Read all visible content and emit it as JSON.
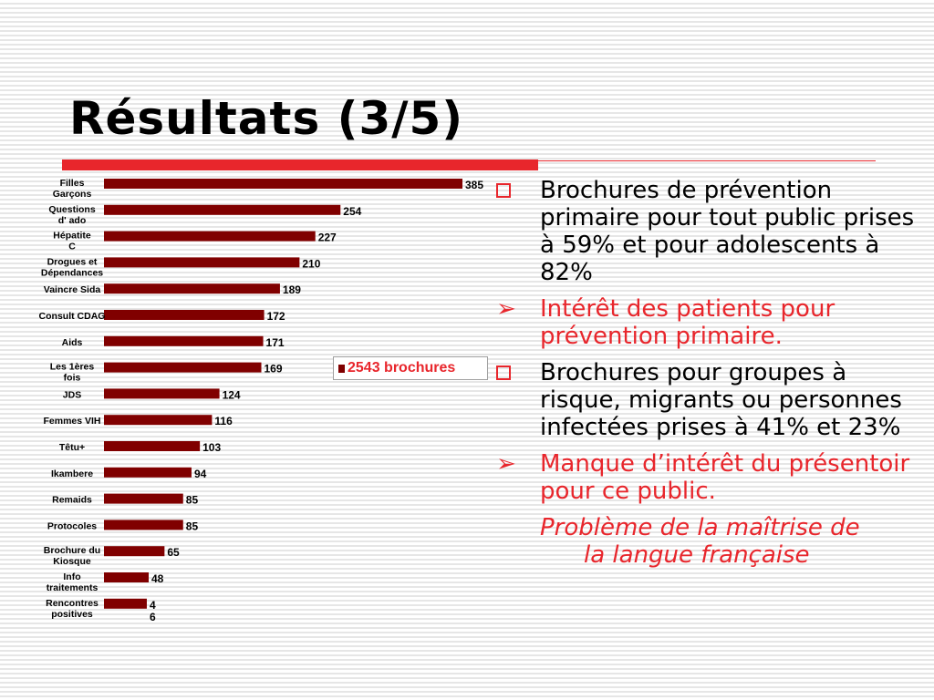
{
  "slide": {
    "title": "Résultats (3/5)"
  },
  "chart_data": {
    "type": "bar",
    "orientation": "horizontal",
    "categories": [
      [
        "Filles",
        "Garçons"
      ],
      [
        "Questions",
        "d' ado"
      ],
      [
        "Hépatite",
        "C"
      ],
      [
        "Drogues et",
        "Dépendances"
      ],
      [
        "Vaincre Sida"
      ],
      [
        "Consult CDAG"
      ],
      [
        "Aids"
      ],
      [
        "Les 1ères",
        "fois"
      ],
      [
        "JDS"
      ],
      [
        "Femmes VIH"
      ],
      [
        "Têtu+"
      ],
      [
        "Ikambere"
      ],
      [
        "Remaids"
      ],
      [
        "Protocoles"
      ],
      [
        "Brochure du",
        "Kiosque"
      ],
      [
        "Info",
        "traitements"
      ],
      [
        "Rencontres",
        "positives"
      ]
    ],
    "series": [
      {
        "values": [
          385,
          254,
          227,
          210,
          189,
          172,
          171,
          169,
          124,
          116,
          103,
          94,
          85,
          85,
          65,
          48,
          46
        ],
        "color": "#800000"
      }
    ],
    "value_labels": [
      "385",
      "254",
      "227",
      "210",
      "189",
      "172",
      "171",
      "169",
      "124",
      "116",
      "103",
      "94",
      "85",
      "85",
      "65",
      "48",
      [
        "4",
        "6"
      ]
    ],
    "legend": {
      "label": "2543 brochures",
      "placement": "middle-right",
      "color": "#e8262c"
    }
  },
  "bullets": [
    {
      "marker": "box",
      "color": "black",
      "text": "Brochures de prévention primaire pour tout public prises à 59% et pour adolescents à 82%"
    },
    {
      "marker": "➢",
      "color": "red",
      "text": "Intérêt des patients pour prévention primaire."
    },
    {
      "marker": "box",
      "color": "black",
      "text": "Brochures pour groupes à risque, migrants ou personnes infectées prises à 41% et 23%"
    },
    {
      "marker": "➢",
      "color": "red",
      "text": "Manque d’intérêt du présentoir pour ce public."
    }
  ],
  "note": {
    "line1": "Problème de la maîtrise de",
    "line2": "la langue française"
  },
  "colors": {
    "accent": "#e8262c",
    "bar": "#800000"
  }
}
